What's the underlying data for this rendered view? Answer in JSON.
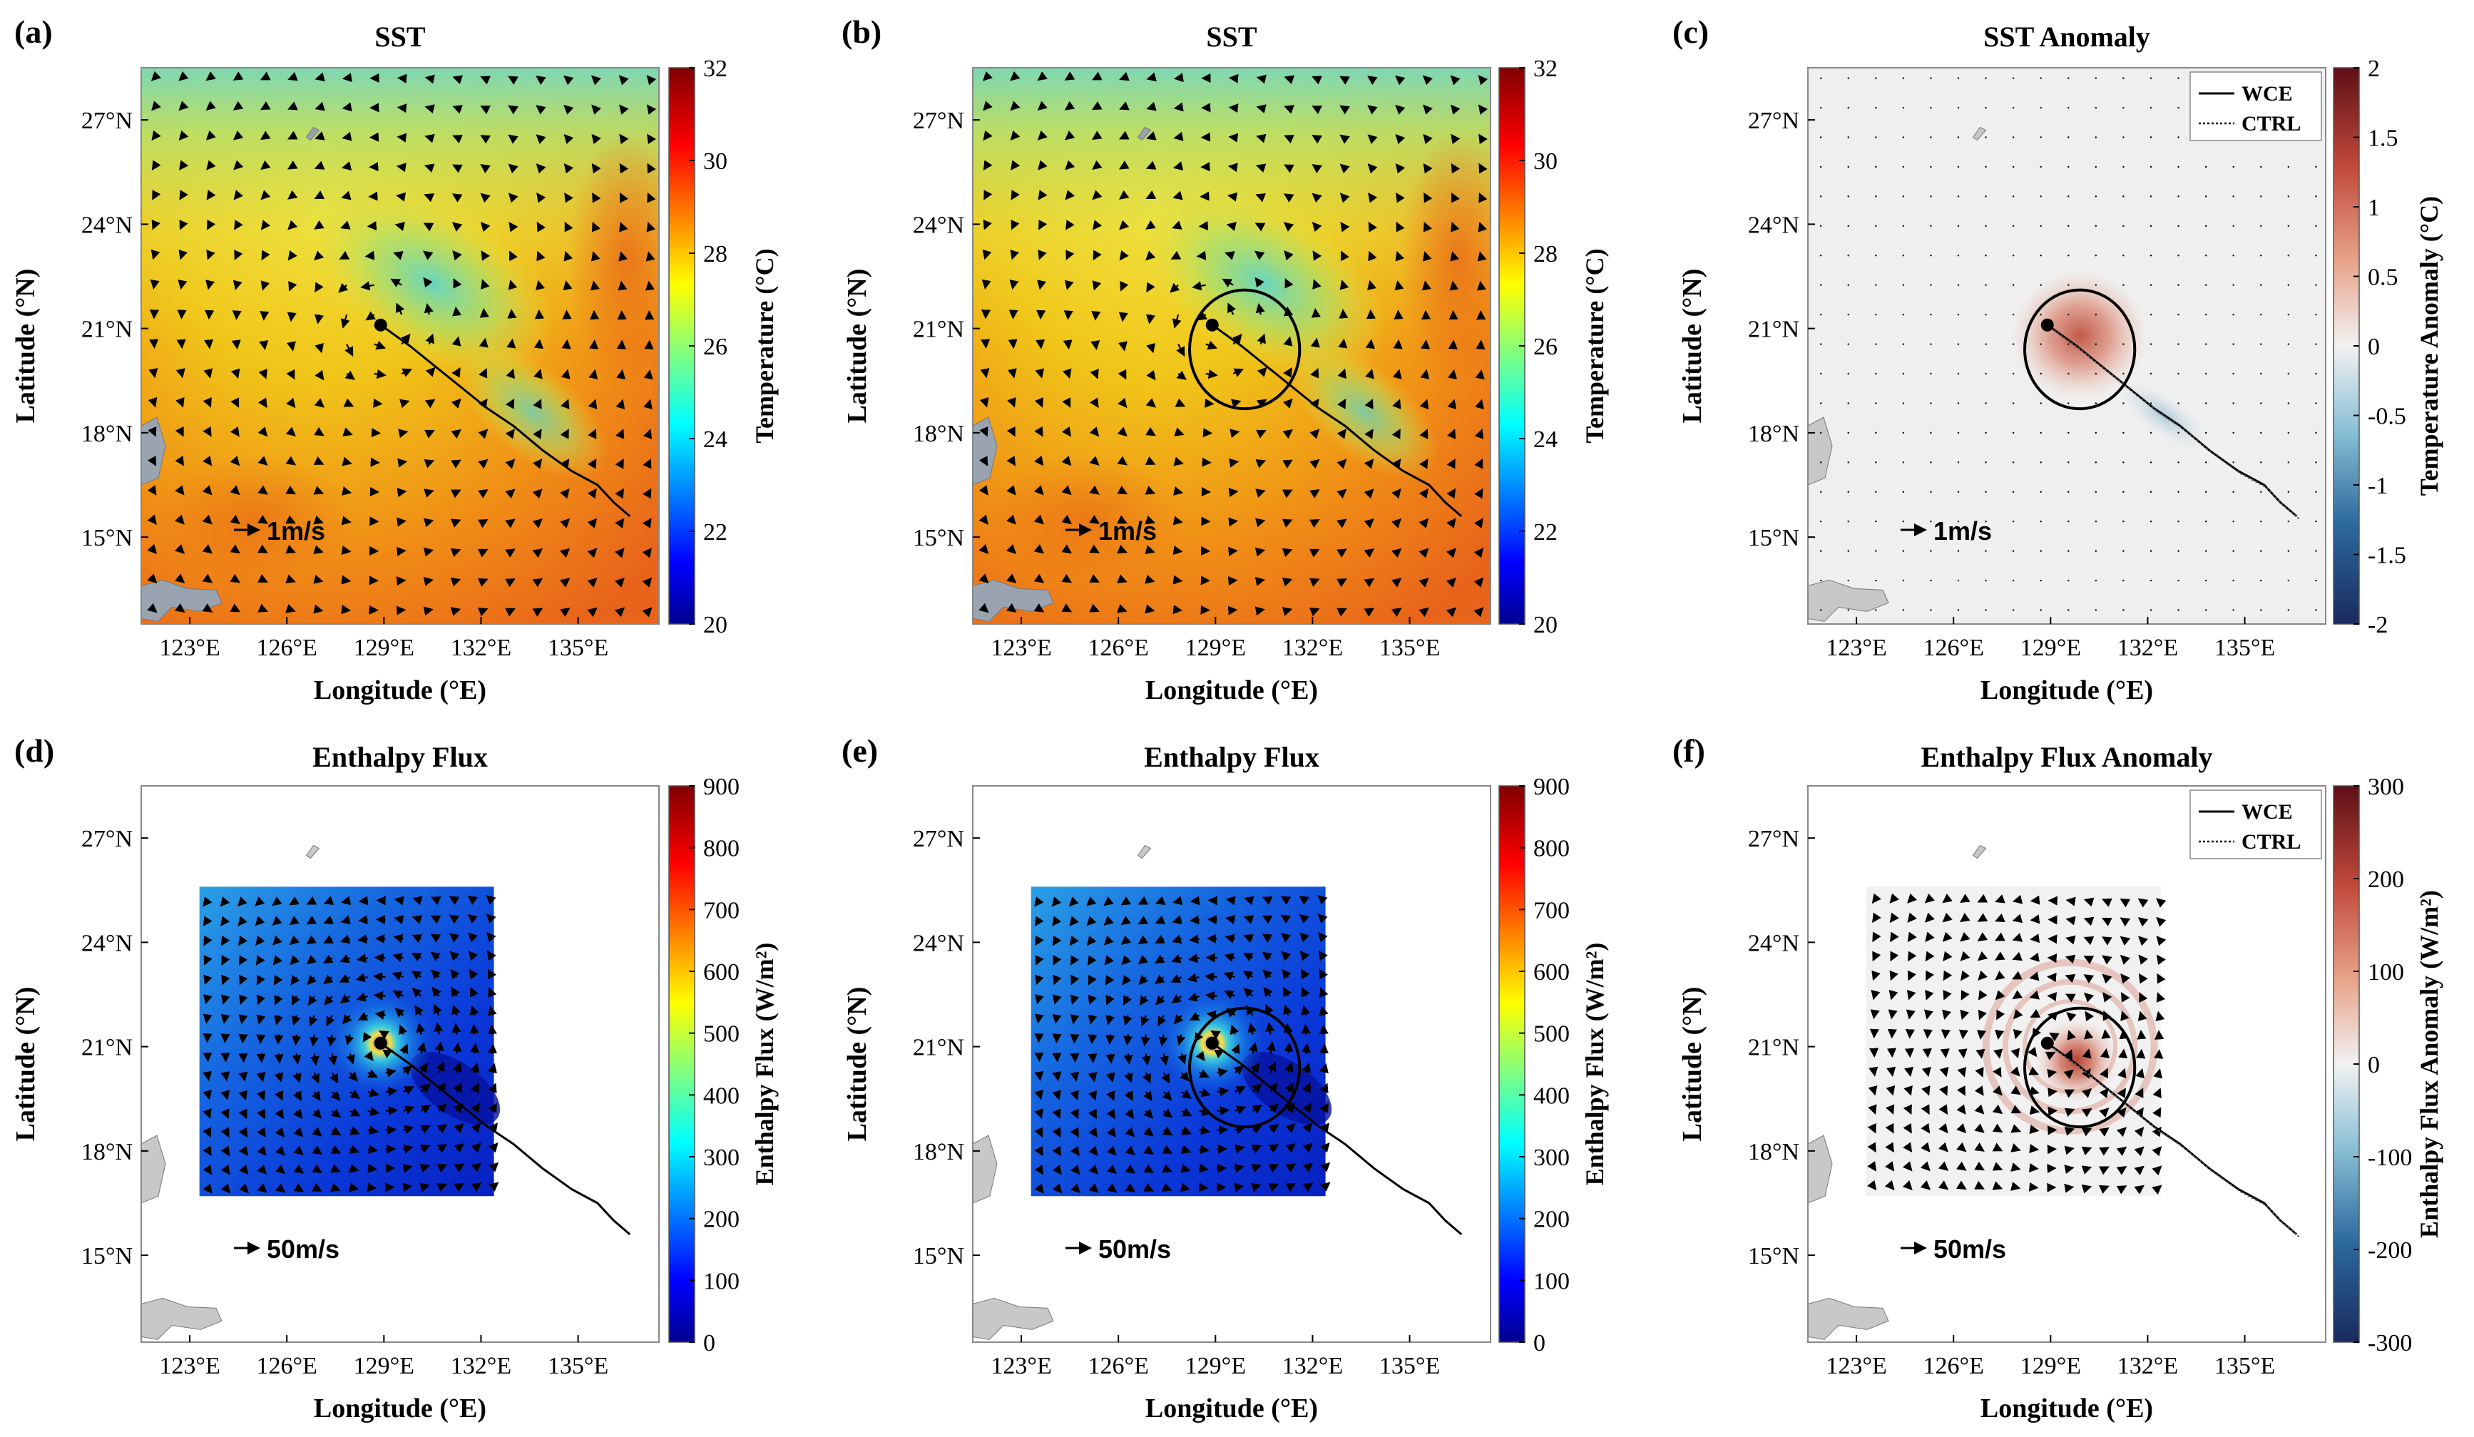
{
  "figure": {
    "common": {
      "xlabel": "Longitude (°E)",
      "ylabel": "Latitude (°N)",
      "x_ticks": [
        "123°E",
        "126°E",
        "129°E",
        "132°E",
        "135°E"
      ],
      "y_ticks": [
        "15°N",
        "18°N",
        "21°N",
        "24°N",
        "27°N"
      ]
    },
    "legend": {
      "solid": "WCE",
      "dotted": "CTRL"
    }
  },
  "chart_data": [
    {
      "id": "a",
      "panel_label": "(a)",
      "type": "heatmap",
      "title": "SST",
      "field": "sst",
      "extent_box": false,
      "ring": false,
      "legend": false,
      "vector_label": "1m/s",
      "colorbar": {
        "label": "Temperature (°C)",
        "min": 20,
        "max": 32,
        "ticks": [
          "20",
          "22",
          "24",
          "26",
          "28",
          "30",
          "32"
        ],
        "scheme": "jet"
      },
      "xlim": [
        121.5,
        137.5
      ],
      "ylim": [
        12.5,
        28.5
      ]
    },
    {
      "id": "b",
      "panel_label": "(b)",
      "type": "heatmap",
      "title": "SST",
      "field": "sst",
      "extent_box": false,
      "ring": true,
      "legend": false,
      "vector_label": "1m/s",
      "colorbar": {
        "label": "Temperature (°C)",
        "min": 20,
        "max": 32,
        "ticks": [
          "20",
          "22",
          "24",
          "26",
          "28",
          "30",
          "32"
        ],
        "scheme": "jet"
      },
      "xlim": [
        121.5,
        137.5
      ],
      "ylim": [
        12.5,
        28.5
      ]
    },
    {
      "id": "c",
      "panel_label": "(c)",
      "type": "heatmap",
      "title": "SST Anomaly",
      "field": "anom",
      "extent_box": false,
      "ring": true,
      "legend": true,
      "vector_label": "1m/s",
      "colorbar": {
        "label": "Temperature Anomaly (°C)",
        "min": -2,
        "max": 2,
        "ticks": [
          "-2",
          "-1.5",
          "-1",
          "-0.5",
          "0",
          "0.5",
          "1",
          "1.5",
          "2"
        ],
        "scheme": "div"
      },
      "xlim": [
        121.5,
        137.5
      ],
      "ylim": [
        12.5,
        28.5
      ]
    },
    {
      "id": "d",
      "panel_label": "(d)",
      "type": "heatmap",
      "title": "Enthalpy Flux",
      "field": "flux",
      "extent_box": true,
      "ring": false,
      "legend": false,
      "vector_label": "50m/s",
      "colorbar": {
        "label": "Enthalpy Flux (W/m²)",
        "min": 0,
        "max": 900,
        "ticks": [
          "0",
          "100",
          "200",
          "300",
          "400",
          "500",
          "600",
          "700",
          "800",
          "900"
        ],
        "scheme": "jet"
      },
      "xlim": [
        121.5,
        137.5
      ],
      "ylim": [
        12.5,
        28.5
      ]
    },
    {
      "id": "e",
      "panel_label": "(e)",
      "type": "heatmap",
      "title": "Enthalpy Flux",
      "field": "flux",
      "extent_box": true,
      "ring": true,
      "legend": false,
      "vector_label": "50m/s",
      "colorbar": {
        "label": "Enthalpy Flux (W/m²)",
        "min": 0,
        "max": 900,
        "ticks": [
          "0",
          "100",
          "200",
          "300",
          "400",
          "500",
          "600",
          "700",
          "800",
          "900"
        ],
        "scheme": "jet"
      },
      "xlim": [
        121.5,
        137.5
      ],
      "ylim": [
        12.5,
        28.5
      ]
    },
    {
      "id": "f",
      "panel_label": "(f)",
      "type": "heatmap",
      "title": "Enthalpy Flux Anomaly",
      "field": "fanom",
      "extent_box": true,
      "ring": true,
      "legend": true,
      "vector_label": "50m/s",
      "colorbar": {
        "label": "Enthalpy Flux Anomaly (W/m²)",
        "min": -300,
        "max": 300,
        "ticks": [
          "-300",
          "-200",
          "-100",
          "0",
          "100",
          "200",
          "300"
        ],
        "scheme": "div"
      },
      "xlim": [
        121.5,
        137.5
      ],
      "ylim": [
        12.5,
        28.5
      ]
    }
  ],
  "track": {
    "lon": [
      128.9,
      129.8,
      130.6,
      131.4,
      132.2,
      133.0,
      133.9,
      134.8,
      135.6,
      136.1,
      136.6
    ],
    "lat": [
      21.1,
      20.5,
      19.9,
      19.3,
      18.7,
      18.2,
      17.5,
      16.9,
      16.5,
      16.0,
      15.6
    ]
  },
  "storm_center": {
    "lon": 128.9,
    "lat": 21.1
  },
  "eddy_ring": {
    "lon": 129.9,
    "lat": 20.4,
    "radius_deg": 1.7
  },
  "flux_box": {
    "lon": [
      123.3,
      132.4
    ],
    "lat": [
      16.7,
      25.6
    ]
  }
}
